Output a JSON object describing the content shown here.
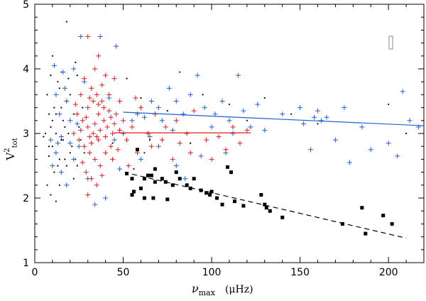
{
  "chart_data": {
    "type": "scatter",
    "title": "",
    "xlabel": {
      "symbol": "ν",
      "subscript": "max",
      "unit": "(μHz)"
    },
    "ylabel": {
      "main": "V",
      "superscript": "2",
      "subscript": "tot"
    },
    "xlim": [
      0,
      220
    ],
    "ylim": [
      1,
      5
    ],
    "xticks": [
      0,
      50,
      100,
      150,
      200
    ],
    "yticks": [
      1,
      2,
      3,
      4,
      5
    ],
    "colors": {
      "black": "#000000",
      "blue": "#1f5fd6",
      "red": "#e8191e",
      "legend_box": "#888888"
    },
    "series": [
      {
        "name": "black-dots",
        "marker": "dot",
        "color": "#000000",
        "points": [
          [
            7,
            3.6
          ],
          [
            8,
            3.3
          ],
          [
            9,
            3.1
          ],
          [
            10,
            2.8
          ],
          [
            11,
            3.4
          ],
          [
            12,
            3.0
          ],
          [
            13,
            2.5
          ],
          [
            14,
            3.7
          ],
          [
            15,
            2.9
          ],
          [
            16,
            3.2
          ],
          [
            17,
            2.6
          ],
          [
            18,
            3.5
          ],
          [
            19,
            3.0
          ],
          [
            20,
            2.7
          ],
          [
            6,
            3.0
          ],
          [
            7,
            2.2
          ],
          [
            8,
            2.8
          ],
          [
            9,
            3.9
          ],
          [
            10,
            4.2
          ],
          [
            11,
            2.4
          ],
          [
            12,
            3.3
          ],
          [
            13,
            3.8
          ],
          [
            14,
            2.6
          ],
          [
            15,
            3.4
          ],
          [
            16,
            2.9
          ],
          [
            17,
            3.1
          ],
          [
            18,
            2.5
          ],
          [
            20,
            3.6
          ],
          [
            21,
            2.8
          ],
          [
            22,
            3.3
          ],
          [
            23,
            2.6
          ],
          [
            24,
            3.9
          ],
          [
            25,
            3.1
          ],
          [
            26,
            2.9
          ],
          [
            27,
            3.4
          ],
          [
            28,
            2.7
          ],
          [
            22,
            2.3
          ],
          [
            24,
            2.5
          ],
          [
            9,
            2.05
          ],
          [
            12,
            1.95
          ],
          [
            14,
            2.2
          ],
          [
            10,
            3.2
          ],
          [
            8,
            2.65
          ],
          [
            18,
            4.73
          ],
          [
            19,
            3.85
          ],
          [
            44,
            2.85
          ],
          [
            52,
            3.85
          ],
          [
            60,
            3.55
          ],
          [
            75,
            3.35
          ],
          [
            82,
            3.95
          ],
          [
            95,
            3.6
          ],
          [
            110,
            3.45
          ],
          [
            120,
            3.2
          ],
          [
            130,
            3.55
          ],
          [
            145,
            3.3
          ],
          [
            160,
            3.15
          ],
          [
            200,
            3.45
          ],
          [
            210,
            3.0
          ],
          [
            65,
            2.9
          ],
          [
            88,
            2.85
          ],
          [
            56,
            2.45
          ],
          [
            62,
            2.7
          ],
          [
            15,
            3.95
          ],
          [
            23,
            4.1
          ],
          [
            5,
            2.95
          ]
        ]
      },
      {
        "name": "blue-plus",
        "marker": "plus",
        "color": "#1f5fd6",
        "points": [
          [
            26,
            4.5
          ],
          [
            37,
            4.5
          ],
          [
            46,
            4.35
          ],
          [
            11,
            4.05
          ],
          [
            16,
            3.95
          ],
          [
            22,
            4.0
          ],
          [
            28,
            3.8
          ],
          [
            12,
            3.6
          ],
          [
            18,
            3.5
          ],
          [
            20,
            3.2
          ],
          [
            14,
            3.3
          ],
          [
            9,
            2.9
          ],
          [
            10,
            2.5
          ],
          [
            12,
            2.7
          ],
          [
            15,
            2.4
          ],
          [
            18,
            2.2
          ],
          [
            22,
            2.6
          ],
          [
            25,
            2.8
          ],
          [
            45,
            2.9
          ],
          [
            50,
            3.0
          ],
          [
            55,
            3.2
          ],
          [
            58,
            3.3
          ],
          [
            62,
            3.25
          ],
          [
            66,
            3.5
          ],
          [
            70,
            3.4
          ],
          [
            72,
            3.2
          ],
          [
            76,
            3.7
          ],
          [
            80,
            3.5
          ],
          [
            84,
            3.3
          ],
          [
            88,
            3.6
          ],
          [
            92,
            3.9
          ],
          [
            96,
            3.4
          ],
          [
            100,
            3.1
          ],
          [
            102,
            3.3
          ],
          [
            106,
            3.5
          ],
          [
            108,
            2.7
          ],
          [
            110,
            3.2
          ],
          [
            112,
            3.0
          ],
          [
            115,
            3.9
          ],
          [
            118,
            3.35
          ],
          [
            122,
            3.1
          ],
          [
            126,
            3.45
          ],
          [
            130,
            3.05
          ],
          [
            140,
            3.3
          ],
          [
            150,
            3.4
          ],
          [
            152,
            3.15
          ],
          [
            156,
            2.75
          ],
          [
            158,
            3.25
          ],
          [
            160,
            3.35
          ],
          [
            162,
            3.2
          ],
          [
            165,
            3.25
          ],
          [
            170,
            2.9
          ],
          [
            175,
            3.4
          ],
          [
            178,
            2.55
          ],
          [
            185,
            3.1
          ],
          [
            190,
            2.75
          ],
          [
            200,
            2.85
          ],
          [
            205,
            2.65
          ],
          [
            208,
            3.65
          ],
          [
            212,
            3.2
          ],
          [
            217,
            3.1
          ],
          [
            60,
            2.6
          ],
          [
            70,
            2.8
          ],
          [
            80,
            2.5
          ],
          [
            85,
            2.3
          ],
          [
            94,
            2.65
          ],
          [
            65,
            2.95
          ],
          [
            78,
            3.05
          ],
          [
            42,
            3.55
          ],
          [
            48,
            2.45
          ],
          [
            34,
            1.9
          ],
          [
            40,
            2.0
          ],
          [
            30,
            2.3
          ],
          [
            15,
            2.95
          ],
          [
            24,
            3.15
          ],
          [
            20,
            2.85
          ],
          [
            17,
            3.7
          ],
          [
            13,
            2.85
          ]
        ]
      },
      {
        "name": "red-plus",
        "marker": "plus",
        "color": "#e8191e",
        "points": [
          [
            30,
            4.5
          ],
          [
            36,
            4.2
          ],
          [
            34,
            4.0
          ],
          [
            28,
            3.85
          ],
          [
            40,
            3.9
          ],
          [
            26,
            3.6
          ],
          [
            32,
            3.7
          ],
          [
            38,
            3.5
          ],
          [
            42,
            3.6
          ],
          [
            24,
            3.3
          ],
          [
            27,
            3.2
          ],
          [
            30,
            3.1
          ],
          [
            33,
            3.0
          ],
          [
            36,
            2.9
          ],
          [
            39,
            3.2
          ],
          [
            41,
            3.1
          ],
          [
            44,
            3.0
          ],
          [
            46,
            3.3
          ],
          [
            25,
            2.9
          ],
          [
            28,
            2.8
          ],
          [
            31,
            2.7
          ],
          [
            34,
            2.6
          ],
          [
            37,
            2.5
          ],
          [
            40,
            2.7
          ],
          [
            43,
            2.8
          ],
          [
            29,
            2.4
          ],
          [
            32,
            2.3
          ],
          [
            35,
            2.2
          ],
          [
            38,
            2.35
          ],
          [
            30,
            3.4
          ],
          [
            33,
            3.5
          ],
          [
            36,
            3.3
          ],
          [
            39,
            3.4
          ],
          [
            42,
            3.35
          ],
          [
            45,
            3.15
          ],
          [
            48,
            3.05
          ],
          [
            22,
            3.0
          ],
          [
            23,
            3.45
          ],
          [
            26,
            3.05
          ],
          [
            29,
            3.25
          ],
          [
            31,
            2.95
          ],
          [
            34,
            3.15
          ],
          [
            37,
            3.05
          ],
          [
            40,
            2.95
          ],
          [
            43,
            3.25
          ],
          [
            35,
            3.6
          ],
          [
            31,
            3.55
          ],
          [
            27,
            2.55
          ],
          [
            44,
            2.6
          ],
          [
            47,
            2.75
          ],
          [
            50,
            3.2
          ],
          [
            52,
            2.9
          ],
          [
            55,
            3.1
          ],
          [
            58,
            2.7
          ],
          [
            60,
            3.4
          ],
          [
            64,
            3.0
          ],
          [
            66,
            2.8
          ],
          [
            68,
            3.3
          ],
          [
            72,
            2.9
          ],
          [
            74,
            3.1
          ],
          [
            78,
            2.6
          ],
          [
            80,
            3.2
          ],
          [
            82,
            2.85
          ],
          [
            86,
            3.0
          ],
          [
            88,
            2.7
          ],
          [
            90,
            3.35
          ],
          [
            97,
            2.9
          ],
          [
            100,
            2.6
          ],
          [
            104,
            2.95
          ],
          [
            108,
            2.75
          ],
          [
            112,
            3.1
          ],
          [
            116,
            2.85
          ],
          [
            120,
            3.05
          ],
          [
            45,
            3.85
          ],
          [
            48,
            3.5
          ],
          [
            53,
            2.5
          ],
          [
            57,
            3.55
          ],
          [
            30,
            2.05
          ],
          [
            35,
            2.95
          ],
          [
            38,
            3.75
          ],
          [
            32,
            2.85
          ],
          [
            36,
            3.45
          ]
        ]
      },
      {
        "name": "black-squares",
        "marker": "square",
        "color": "#000000",
        "points": [
          [
            52,
            2.38
          ],
          [
            55,
            2.3
          ],
          [
            58,
            2.75
          ],
          [
            62,
            2.3
          ],
          [
            64,
            2.35
          ],
          [
            66,
            2.35
          ],
          [
            68,
            2.25
          ],
          [
            56,
            2.1
          ],
          [
            72,
            2.3
          ],
          [
            74,
            2.25
          ],
          [
            78,
            2.2
          ],
          [
            82,
            2.3
          ],
          [
            86,
            2.2
          ],
          [
            88,
            2.15
          ],
          [
            90,
            2.3
          ],
          [
            94,
            2.12
          ],
          [
            97,
            2.08
          ],
          [
            99,
            2.05
          ],
          [
            100,
            2.1
          ],
          [
            103,
            2.0
          ],
          [
            106,
            1.9
          ],
          [
            109,
            2.48
          ],
          [
            111,
            2.4
          ],
          [
            113,
            1.95
          ],
          [
            118,
            1.88
          ],
          [
            128,
            2.05
          ],
          [
            130,
            1.9
          ],
          [
            131,
            1.85
          ],
          [
            133,
            1.8
          ],
          [
            140,
            1.7
          ],
          [
            174,
            1.6
          ],
          [
            185,
            1.85
          ],
          [
            187,
            1.45
          ],
          [
            197,
            1.73
          ],
          [
            202,
            1.6
          ],
          [
            62,
            2.0
          ],
          [
            75,
            1.98
          ],
          [
            55,
            2.05
          ],
          [
            67,
            2.0
          ],
          [
            60,
            2.15
          ],
          [
            68,
            2.45
          ],
          [
            80,
            2.4
          ]
        ]
      }
    ],
    "fits": [
      {
        "name": "blue-fit",
        "color": "#1f5fd6",
        "style": "solid",
        "x": [
          50,
          220
        ],
        "y": [
          3.33,
          3.12
        ]
      },
      {
        "name": "red-fit",
        "color": "#e8191e",
        "style": "solid",
        "x": [
          45,
          122
        ],
        "y": [
          3.01,
          3.01
        ]
      },
      {
        "name": "black-fit",
        "color": "#000000",
        "style": "dashed",
        "x": [
          55,
          210
        ],
        "y": [
          2.37,
          1.38
        ]
      }
    ]
  }
}
